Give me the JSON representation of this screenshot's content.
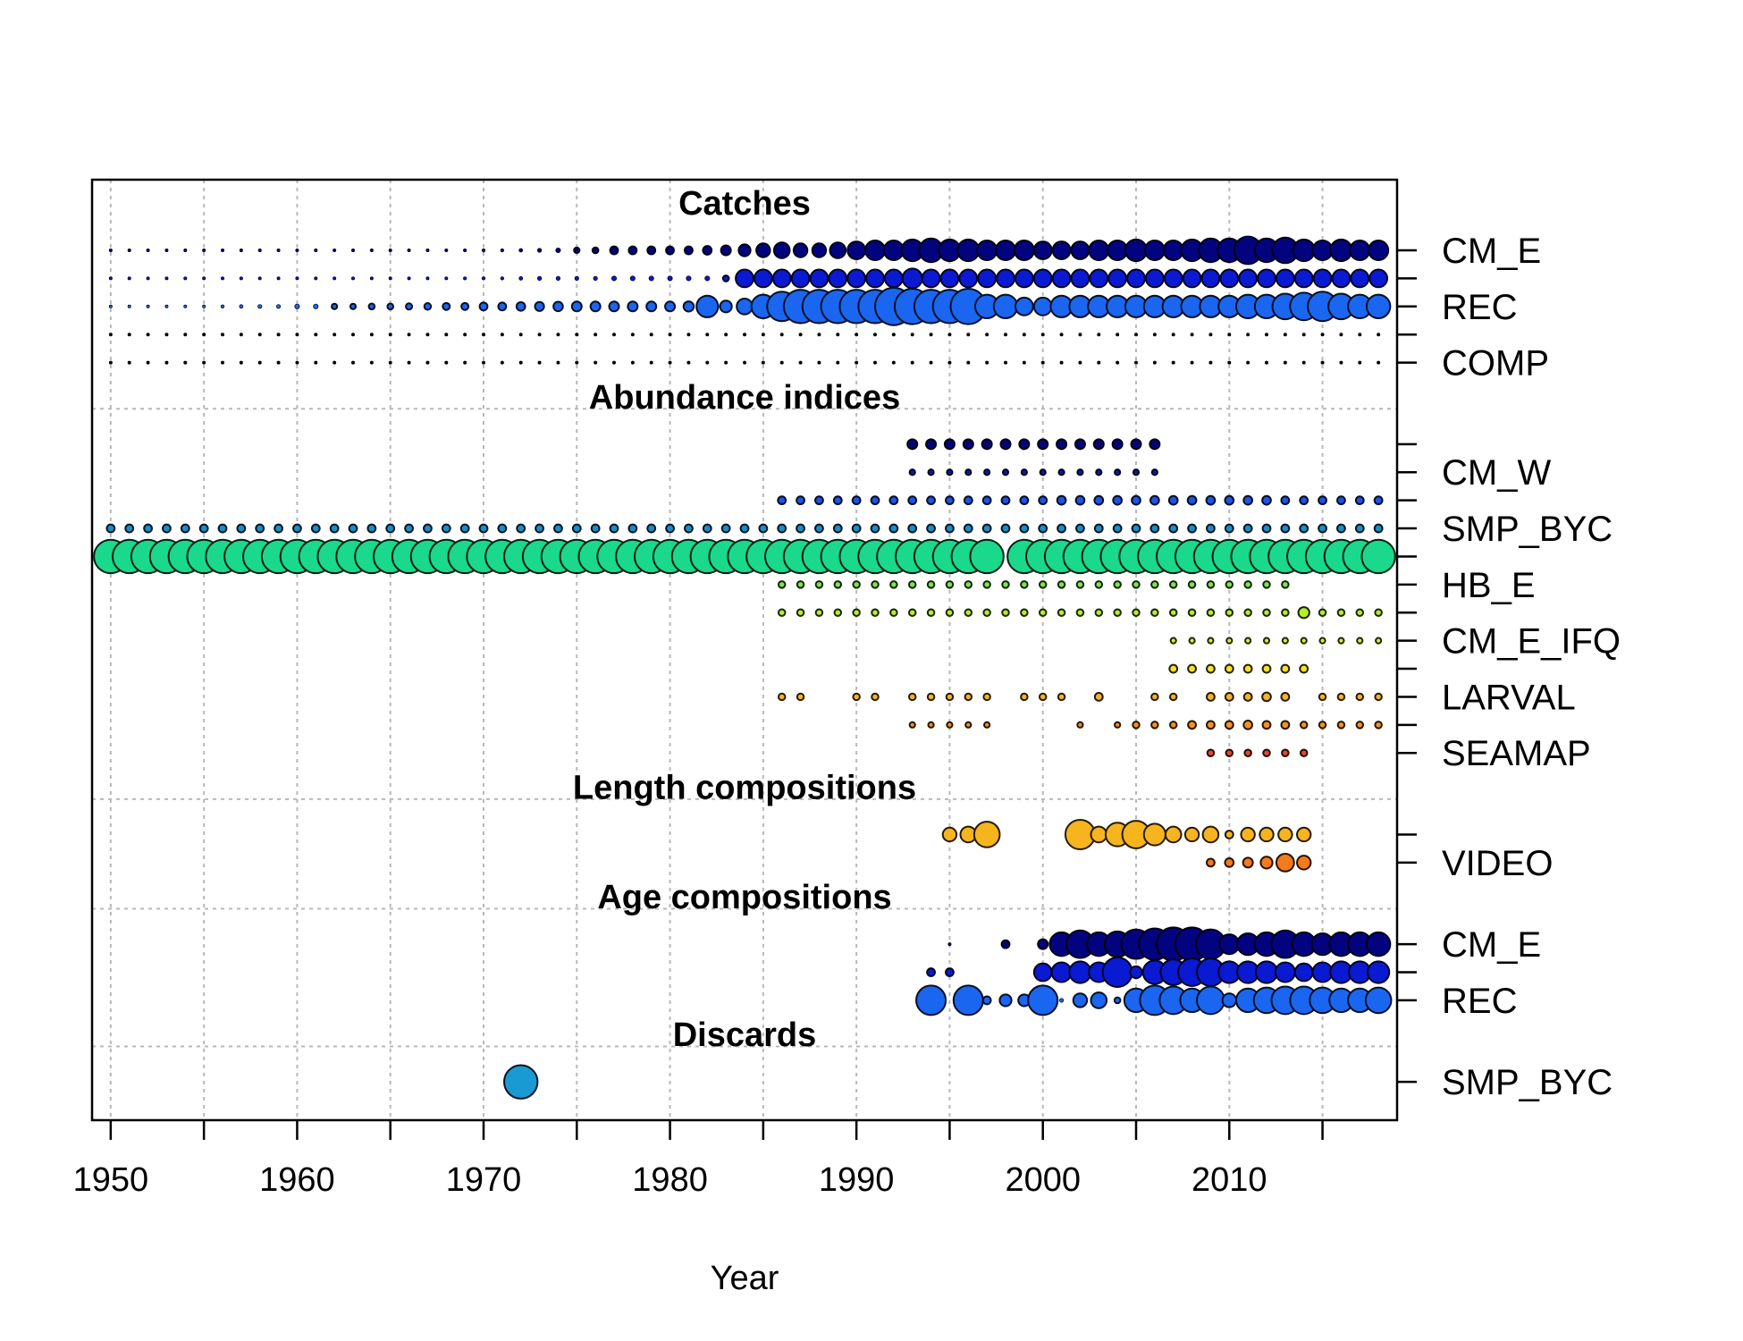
{
  "chart_data": {
    "type": "scatter",
    "xlabel": "Year",
    "xlim": [
      1949,
      2019
    ],
    "x_ticks": [
      1950,
      1960,
      1970,
      1980,
      1990,
      2000,
      2010
    ],
    "grid": true,
    "sections": [
      {
        "title": "Catches",
        "rows": [
          {
            "label": "CM_E",
            "color": "#03037f",
            "segments": [
              {
                "from": 1950,
                "to": 1970,
                "sizes": [
                  0.03,
                  0.03,
                  0.03,
                  0.035,
                  0.035,
                  0.035,
                  0.04,
                  0.04,
                  0.045,
                  0.045,
                  0.05,
                  0.05,
                  0.055,
                  0.055,
                  0.06,
                  0.06,
                  0.065,
                  0.07,
                  0.07,
                  0.075,
                  0.08
                ]
              },
              {
                "from": 1971,
                "to": 2018,
                "sizes": [
                  0.08,
                  0.09,
                  0.1,
                  0.12,
                  0.14,
                  0.15,
                  0.2,
                  0.2,
                  0.2,
                  0.2,
                  0.2,
                  0.22,
                  0.25,
                  0.3,
                  0.35,
                  0.4,
                  0.35,
                  0.35,
                  0.4,
                  0.45,
                  0.5,
                  0.5,
                  0.55,
                  0.6,
                  0.55,
                  0.55,
                  0.5,
                  0.5,
                  0.5,
                  0.45,
                  0.45,
                  0.45,
                  0.5,
                  0.5,
                  0.55,
                  0.5,
                  0.5,
                  0.55,
                  0.6,
                  0.6,
                  0.7,
                  0.6,
                  0.65,
                  0.55,
                  0.5,
                  0.55,
                  0.5,
                  0.5
                ]
              }
            ]
          },
          {
            "label": "",
            "color": "#0a1ad2",
            "segments": [
              {
                "from": 1950,
                "to": 1983,
                "sizes": [
                  0.03,
                  0.03,
                  0.03,
                  0.035,
                  0.035,
                  0.035,
                  0.04,
                  0.04,
                  0.045,
                  0.045,
                  0.05,
                  0.05,
                  0.055,
                  0.055,
                  0.06,
                  0.06,
                  0.065,
                  0.07,
                  0.07,
                  0.075,
                  0.08,
                  0.08,
                  0.09,
                  0.1,
                  0.1,
                  0.1,
                  0.1,
                  0.12,
                  0.12,
                  0.12,
                  0.12,
                  0.12,
                  0.12,
                  0.15
                ]
              },
              {
                "from": 1984,
                "to": 2018,
                "sizes": [
                  0.45,
                  0.45,
                  0.45,
                  0.45,
                  0.45,
                  0.45,
                  0.45,
                  0.45,
                  0.45,
                  0.5,
                  0.45,
                  0.45,
                  0.45,
                  0.45,
                  0.45,
                  0.45,
                  0.45,
                  0.45,
                  0.45,
                  0.45,
                  0.45,
                  0.45,
                  0.45,
                  0.45,
                  0.45,
                  0.45,
                  0.45,
                  0.45,
                  0.45,
                  0.45,
                  0.45,
                  0.45,
                  0.45,
                  0.45,
                  0.45
                ]
              }
            ]
          },
          {
            "label": "REC",
            "color": "#1a66f0",
            "segments": [
              {
                "from": 1950,
                "to": 1981,
                "sizes": [
                  0.05,
                  0.05,
                  0.06,
                  0.06,
                  0.07,
                  0.07,
                  0.08,
                  0.09,
                  0.1,
                  0.1,
                  0.12,
                  0.12,
                  0.14,
                  0.14,
                  0.15,
                  0.15,
                  0.16,
                  0.17,
                  0.18,
                  0.18,
                  0.2,
                  0.2,
                  0.22,
                  0.23,
                  0.24,
                  0.25,
                  0.25,
                  0.25,
                  0.25,
                  0.25,
                  0.25,
                  0.26
                ]
              },
              {
                "from": 1982,
                "to": 2018,
                "sizes": [
                  0.55,
                  0.3,
                  0.4,
                  0.6,
                  0.75,
                  0.85,
                  0.85,
                  0.85,
                  0.85,
                  0.85,
                  0.95,
                  0.9,
                  0.85,
                  0.85,
                  0.9,
                  0.6,
                  0.6,
                  0.45,
                  0.45,
                  0.55,
                  0.55,
                  0.55,
                  0.55,
                  0.55,
                  0.55,
                  0.55,
                  0.55,
                  0.55,
                  0.55,
                  0.6,
                  0.6,
                  0.65,
                  0.7,
                  0.75,
                  0.65,
                  0.6,
                  0.6
                ]
              }
            ]
          },
          {
            "label": "",
            "color": "#000000",
            "segments": [
              {
                "from": 1950,
                "to": 2018,
                "sizes": [
                  0.02
                ]
              }
            ]
          },
          {
            "label": "COMP",
            "color": "#000000",
            "segments": [
              {
                "from": 1950,
                "to": 2018,
                "sizes": [
                  0.02
                ]
              }
            ]
          }
        ]
      },
      {
        "title": "Abundance indices",
        "rows": [
          {
            "label": "",
            "color": "#04047a",
            "segments": [
              {
                "from": 1993,
                "to": 2006,
                "sizes": [
                  0.25
                ]
              }
            ]
          },
          {
            "label": "CM_W",
            "color": "#0a1aa8",
            "segments": [
              {
                "from": 1993,
                "to": 2006,
                "sizes": [
                  0.14
                ]
              }
            ]
          },
          {
            "label": "",
            "color": "#1a55e6",
            "segments": [
              {
                "from": 1986,
                "to": 2018,
                "sizes": [
                  0.2,
                  0.2,
                  0.2,
                  0.2,
                  0.2,
                  0.2,
                  0.2,
                  0.2,
                  0.2,
                  0.2,
                  0.2,
                  0.2,
                  0.2,
                  0.2,
                  0.2,
                  0.22,
                  0.22,
                  0.22,
                  0.22,
                  0.22,
                  0.22,
                  0.22,
                  0.22,
                  0.22,
                  0.22,
                  0.22,
                  0.22,
                  0.2,
                  0.2,
                  0.2,
                  0.2,
                  0.2,
                  0.2
                ]
              }
            ]
          },
          {
            "label": "SMP_BYC",
            "color": "#1a8ec8",
            "segments": [
              {
                "from": 1950,
                "to": 2018,
                "sizes": [
                  0.2
                ]
              }
            ]
          },
          {
            "label": "",
            "color": "#1ad88c",
            "segments": [
              {
                "from": 1950,
                "to": 1997,
                "sizes": [
                  0.85
                ]
              },
              {
                "from": 1999,
                "to": 2018,
                "sizes": [
                  0.85
                ]
              }
            ]
          },
          {
            "label": "HB_E",
            "color": "#7ee64a",
            "segments": [
              {
                "from": 1986,
                "to": 2013,
                "sizes": [
                  0.17
                ]
              }
            ]
          },
          {
            "label": "",
            "color": "#b4ef28",
            "segments": [
              {
                "from": 1986,
                "to": 2013,
                "sizes": [
                  0.17
                ]
              },
              {
                "from": 2014,
                "to": 2014,
                "sizes": [
                  0.28
                ]
              },
              {
                "from": 2015,
                "to": 2018,
                "sizes": [
                  0.17
                ]
              }
            ]
          },
          {
            "label": "CM_E_IFQ",
            "color": "#dcef22",
            "segments": [
              {
                "from": 2007,
                "to": 2018,
                "sizes": [
                  0.14
                ]
              }
            ]
          },
          {
            "label": "",
            "color": "#f6e228",
            "segments": [
              {
                "from": 2007,
                "to": 2014,
                "sizes": [
                  0.2
                ]
              }
            ]
          },
          {
            "label": "LARVAL",
            "color": "#f6b41e",
            "segments": [
              {
                "from": 1986,
                "to": 1987,
                "sizes": [
                  0.17
                ]
              },
              {
                "from": 1990,
                "to": 1991,
                "sizes": [
                  0.17
                ]
              },
              {
                "from": 1993,
                "to": 1997,
                "sizes": [
                  0.17
                ]
              },
              {
                "from": 1999,
                "to": 2001,
                "sizes": [
                  0.17
                ]
              },
              {
                "from": 2003,
                "to": 2003,
                "sizes": [
                  0.2
                ]
              },
              {
                "from": 2006,
                "to": 2007,
                "sizes": [
                  0.17
                ]
              },
              {
                "from": 2009,
                "to": 2013,
                "sizes": [
                  0.2,
                  0.2,
                  0.2,
                  0.22,
                  0.2
                ]
              },
              {
                "from": 2015,
                "to": 2018,
                "sizes": [
                  0.17
                ]
              }
            ]
          },
          {
            "label": "",
            "color": "#f6921e",
            "segments": [
              {
                "from": 1993,
                "to": 1997,
                "sizes": [
                  0.14
                ]
              },
              {
                "from": 2002,
                "to": 2002,
                "sizes": [
                  0.14
                ]
              },
              {
                "from": 2004,
                "to": 2018,
                "sizes": [
                  0.14,
                  0.17,
                  0.17,
                  0.17,
                  0.2,
                  0.2,
                  0.2,
                  0.22,
                  0.2,
                  0.2,
                  0.17,
                  0.17,
                  0.17,
                  0.17,
                  0.17
                ]
              }
            ]
          },
          {
            "label": "SEAMAP",
            "color": "#e8462a",
            "segments": [
              {
                "from": 2009,
                "to": 2014,
                "sizes": [
                  0.17
                ]
              }
            ]
          }
        ]
      },
      {
        "title": "Length compositions",
        "rows": [
          {
            "label": "",
            "color": "#f6b41e",
            "segments": [
              {
                "from": 1995,
                "to": 1997,
                "sizes": [
                  0.35,
                  0.4,
                  0.65
                ]
              },
              {
                "from": 2002,
                "to": 2014,
                "sizes": [
                  0.75,
                  0.4,
                  0.6,
                  0.7,
                  0.55,
                  0.4,
                  0.35,
                  0.4,
                  0.2,
                  0.35,
                  0.35,
                  0.35,
                  0.35
                ]
              }
            ]
          },
          {
            "label": "VIDEO",
            "color": "#f47a1a",
            "segments": [
              {
                "from": 2009,
                "to": 2014,
                "sizes": [
                  0.2,
                  0.22,
                  0.25,
                  0.3,
                  0.45,
                  0.35
                ]
              }
            ]
          }
        ]
      },
      {
        "title": "Age compositions",
        "rows": [
          {
            "label": "CM_E",
            "color": "#03037f",
            "segments": [
              {
                "from": 1995,
                "to": 1995,
                "sizes": [
                  0.06
                ]
              },
              {
                "from": 1998,
                "to": 1998,
                "sizes": [
                  0.2
                ]
              },
              {
                "from": 2000,
                "to": 2018,
                "sizes": [
                  0.25,
                  0.6,
                  0.7,
                  0.6,
                  0.65,
                  0.75,
                  0.8,
                  0.85,
                  0.85,
                  0.75,
                  0.5,
                  0.55,
                  0.6,
                  0.7,
                  0.6,
                  0.55,
                  0.6,
                  0.6,
                  0.6
                ]
              }
            ]
          },
          {
            "label": "",
            "color": "#0a1ad2",
            "segments": [
              {
                "from": 1994,
                "to": 1995,
                "sizes": [
                  0.2,
                  0.2
                ]
              },
              {
                "from": 2000,
                "to": 2018,
                "sizes": [
                  0.45,
                  0.5,
                  0.55,
                  0.5,
                  0.75,
                  0.3,
                  0.6,
                  0.65,
                  0.7,
                  0.7,
                  0.55,
                  0.55,
                  0.55,
                  0.5,
                  0.45,
                  0.5,
                  0.55,
                  0.55,
                  0.55
                ]
              }
            ]
          },
          {
            "label": "REC",
            "color": "#1a66f0",
            "segments": [
              {
                "from": 1994,
                "to": 1994,
                "sizes": [
                  0.75
                ]
              },
              {
                "from": 1996,
                "to": 2006,
                "sizes": [
                  0.75,
                  0.2,
                  0.3,
                  0.3,
                  0.75,
                  0.1,
                  0.35,
                  0.4,
                  0.15,
                  0.6,
                  0.75
                ]
              },
              {
                "from": 2007,
                "to": 2018,
                "sizes": [
                  0.7,
                  0.6,
                  0.7,
                  0.35,
                  0.6,
                  0.65,
                  0.7,
                  0.7,
                  0.65,
                  0.6,
                  0.6,
                  0.65
                ]
              }
            ]
          }
        ]
      },
      {
        "title": "Discards",
        "rows": [
          {
            "label": "SMP_BYC",
            "color": "#1a9ad2",
            "segments": [
              {
                "from": 1972,
                "to": 1972,
                "sizes": [
                  0.85
                ]
              }
            ]
          }
        ]
      }
    ]
  }
}
